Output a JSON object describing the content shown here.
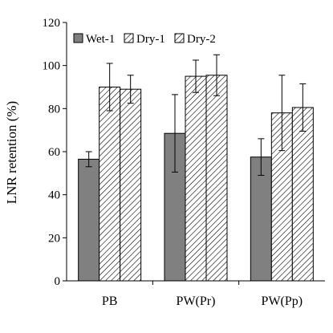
{
  "chart_data": {
    "type": "bar",
    "ylabel": "LNR retention (%)",
    "ylim": [
      0,
      120
    ],
    "ytick_step": 20,
    "categories": [
      "PB",
      "PW(Pr)",
      "PW(Pp)"
    ],
    "legend_position": "top-left",
    "series": [
      {
        "name": "Wet-1",
        "values": [
          56.5,
          68.5,
          57.5
        ],
        "errors": [
          3.5,
          18,
          8.5
        ],
        "fill": "#808080",
        "pattern": "solid"
      },
      {
        "name": "Dry-1",
        "values": [
          90,
          95,
          78
        ],
        "errors": [
          11,
          7.5,
          17.5
        ],
        "fill": "#ffffff",
        "pattern": "hatch"
      },
      {
        "name": "Dry-2",
        "values": [
          89,
          95.5,
          80.5
        ],
        "errors": [
          6.5,
          9.5,
          11
        ],
        "fill": "#ffffff",
        "pattern": "hatch"
      }
    ]
  }
}
